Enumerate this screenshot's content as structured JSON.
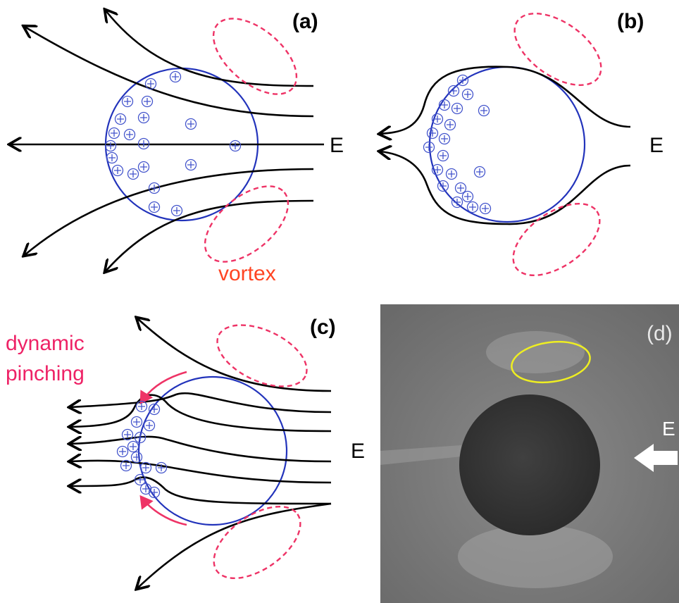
{
  "panels": [
    {
      "label": "(a)",
      "field": "E",
      "annotation": "vortex"
    },
    {
      "label": "(b)",
      "field": "E"
    },
    {
      "label": "(c)",
      "field": "E",
      "annotation": [
        "dynamic",
        "pinching"
      ]
    },
    {
      "label": "(d)",
      "field": "E"
    }
  ]
}
